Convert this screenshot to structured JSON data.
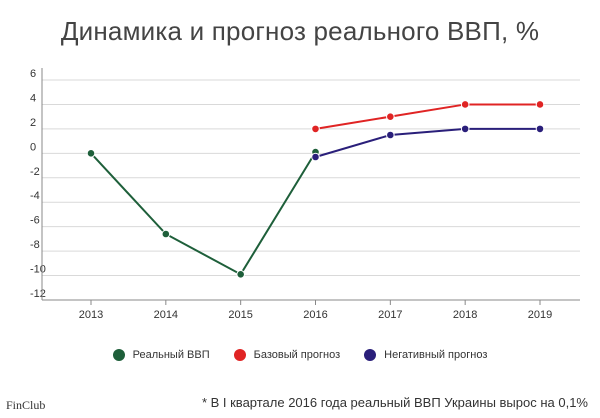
{
  "chart_data": {
    "type": "line",
    "title": "Динамика и прогноз реального ВВП, %",
    "categories": [
      "2013",
      "2014",
      "2015",
      "2016",
      "2017",
      "2018",
      "2019"
    ],
    "y_ticks": [
      "6",
      "4",
      "2",
      "0",
      "-2",
      "-4",
      "-6",
      "-8",
      "-10",
      "-12"
    ],
    "ylim": [
      -12,
      6
    ],
    "grid": "horizontal",
    "legend_position": "bottom",
    "series": [
      {
        "name": "Реальный ВВП",
        "color": "#1e5f3a",
        "x": [
          "2013",
          "2014",
          "2015",
          "2016"
        ],
        "values": [
          0.0,
          -6.6,
          -9.9,
          0.1
        ]
      },
      {
        "name": "Базовый прогноз",
        "color": "#e02424",
        "x": [
          "2016",
          "2017",
          "2018",
          "2019"
        ],
        "values": [
          2.0,
          3.0,
          4.0,
          4.0
        ]
      },
      {
        "name": "Негативный прогноз",
        "color": "#2a1f7a",
        "x": [
          "2016",
          "2017",
          "2018",
          "2019"
        ],
        "values": [
          -0.3,
          1.5,
          2.0,
          2.0
        ]
      }
    ]
  },
  "footnote": "* В I квартале 2016 года реальный ВВП Украины вырос на 0,1%",
  "brand": "FinClub"
}
